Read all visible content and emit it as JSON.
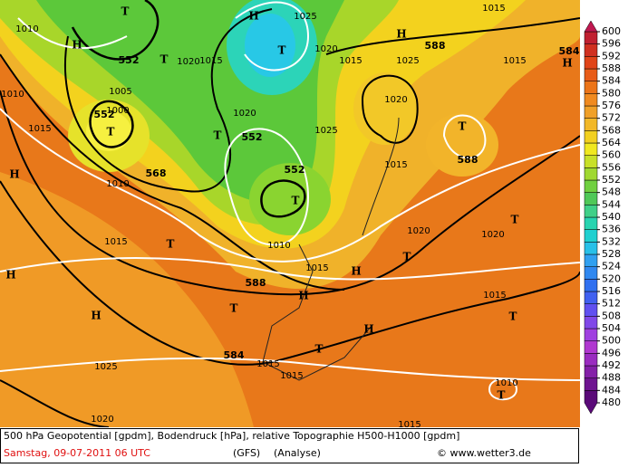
{
  "map": {
    "labels": [
      "552",
      "552",
      "552",
      "552",
      "568",
      "588",
      "588",
      "588",
      "584",
      "584",
      "1010",
      "1010",
      "1005",
      "1000",
      "1015",
      "1010",
      "1015",
      "1020",
      "1015",
      "1025",
      "1020",
      "1020",
      "1015",
      "1025",
      "1015",
      "1015",
      "1020",
      "1025",
      "1015",
      "1020",
      "1020",
      "1010",
      "1015",
      "1015",
      "1025",
      "1015",
      "1015",
      "1010",
      "1020",
      "1015",
      "T",
      "H",
      "T",
      "H",
      "T",
      "T",
      "T",
      "H",
      "T",
      "T",
      "H",
      "T",
      "T",
      "T",
      "H",
      "H",
      "H",
      "T",
      "H",
      "T",
      "H",
      "T",
      "T",
      "H"
    ]
  },
  "colorbar": {
    "levels": [
      480,
      484,
      488,
      492,
      496,
      500,
      504,
      508,
      512,
      516,
      520,
      524,
      528,
      532,
      536,
      540,
      544,
      548,
      552,
      556,
      560,
      564,
      568,
      572,
      576,
      580,
      584,
      588,
      592,
      596,
      600
    ],
    "colors": [
      "#5a0a78",
      "#6e1490",
      "#8420a8",
      "#9a2cc0",
      "#b038d0",
      "#a040e0",
      "#8048e8",
      "#6050f0",
      "#4060f0",
      "#3070f0",
      "#3088f0",
      "#30a0f0",
      "#28c0e8",
      "#20d0d0",
      "#28d4b0",
      "#40d088",
      "#50c858",
      "#70d040",
      "#a0d830",
      "#c8e028",
      "#f0e820",
      "#f2d020",
      "#f2b828",
      "#f0a028",
      "#f08a20",
      "#ec7418",
      "#e85c18",
      "#e04418",
      "#d03020",
      "#c02030",
      "#c01850"
    ]
  },
  "footer": {
    "description": "500 hPa Geopotential [gpdm], Bodendruck [hPa], relative Topographie H500-H1000 [gpdm]",
    "date": "Samstag, 09-07-2011  06 UTC",
    "model": "(GFS)",
    "run_type": "(Analyse)",
    "credit": "© www.wetter3.de"
  }
}
